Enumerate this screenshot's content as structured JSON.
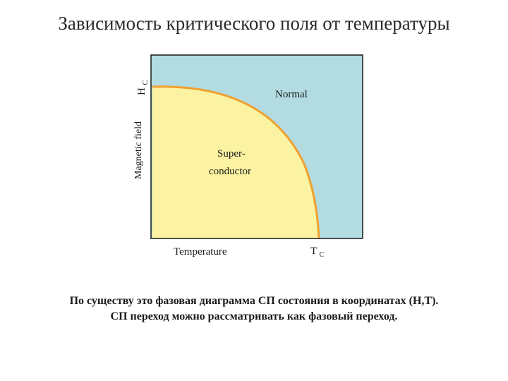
{
  "title": "Зависимость критического поля от температуры",
  "diagram": {
    "y_axis_label": "Magnetic field",
    "y_axis_end_label": "H",
    "y_axis_end_subscript": "C",
    "x_axis_label": "Temperature",
    "x_axis_end_label": "T",
    "x_axis_end_subscript": "C",
    "normal_region_label": "Normal",
    "superconductor_label_line1": "Super-",
    "superconductor_label_line2": "conductor",
    "colors": {
      "normal_fill": "#b3dbe2",
      "superconductor_fill": "#fbf3a2",
      "critical_curve": "#f0a030",
      "frame": "#1a1a1a"
    }
  },
  "caption": {
    "line1": "По существу это фазовая диаграмма СП состояния в координатах (H,T).",
    "line2": "СП переход можно рассматривать как фазовый переход."
  }
}
